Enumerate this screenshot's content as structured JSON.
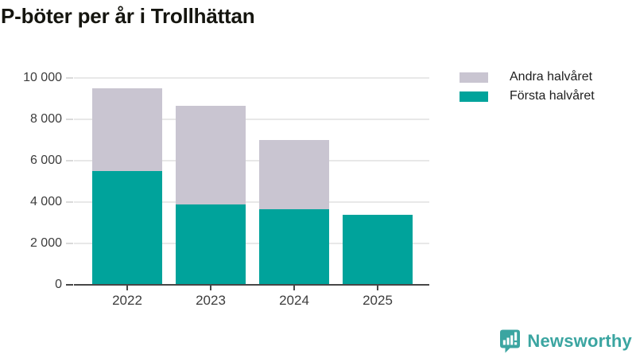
{
  "title": "P-böter per år i Trollhättan",
  "brand": {
    "name": "Newsworthy",
    "color": "#3ba5a1"
  },
  "axis": {
    "grid_color": "#e8e8e8",
    "axis_color": "#474747",
    "label_color": "#3d3d3d"
  },
  "chart_data": {
    "type": "bar",
    "stacked": true,
    "title": "P-böter per år i Trollhättan",
    "xlabel": "",
    "ylabel": "",
    "categories": [
      "2022",
      "2023",
      "2024",
      "2025"
    ],
    "series": [
      {
        "name": "Första halvåret",
        "color": "#00a39b",
        "values": [
          5500,
          3900,
          3650,
          3400
        ]
      },
      {
        "name": "Andra halvåret",
        "color": "#c9c5d1",
        "values": [
          4000,
          4750,
          3350,
          0
        ]
      }
    ],
    "totals": [
      9500,
      8650,
      7000,
      3400
    ],
    "ylim": [
      0,
      10000
    ],
    "yticks": [
      0,
      2000,
      4000,
      6000,
      8000,
      10000
    ],
    "ytick_labels": [
      "0",
      "2 000",
      "4 000",
      "6 000",
      "8 000",
      "10 000"
    ],
    "grid": "horizontal",
    "legend_position": "top-right",
    "legend_order": [
      "Andra halvåret",
      "Första halvåret"
    ]
  }
}
